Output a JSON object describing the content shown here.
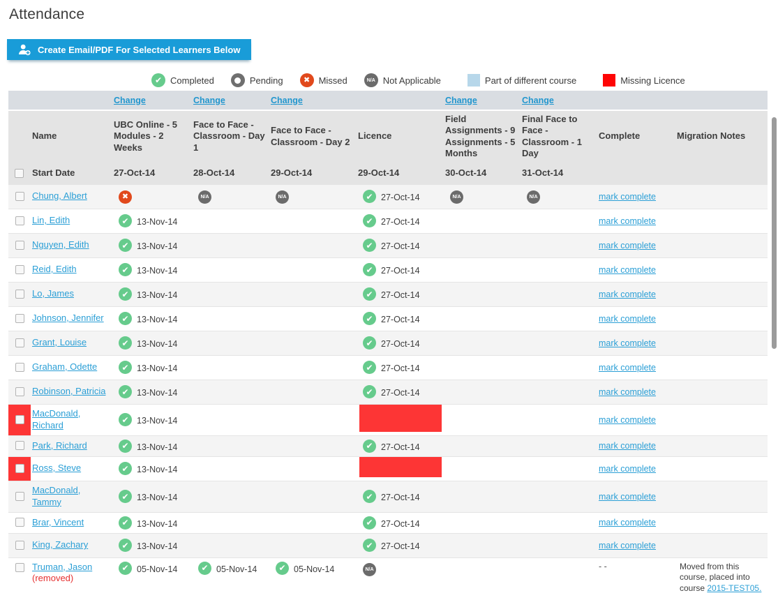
{
  "page": {
    "title": "Attendance"
  },
  "toolbar": {
    "create_button_label": "Create Email/PDF For Selected Learners Below",
    "create_button_icon": "add-user-icon"
  },
  "colors": {
    "accent_blue": "#199cd8",
    "link_blue": "#2b9fd6",
    "completed_green": "#66cb8c",
    "missed_orange_red": "#e1491c",
    "na_gray": "#6b6b6b",
    "missing_licence_red": "#fd3535",
    "legend_blue_square": "#b7d7ea",
    "legend_red_square": "#fe0505"
  },
  "legend": {
    "items": [
      {
        "icon": "completed-icon",
        "label": "Completed"
      },
      {
        "icon": "pending-icon",
        "label": "Pending"
      },
      {
        "icon": "missed-icon",
        "label": "Missed"
      },
      {
        "icon": "na-icon",
        "label": "Not Applicable"
      },
      {
        "icon": "blue-square-icon",
        "label": "Part of different course"
      },
      {
        "icon": "red-square-icon",
        "label": "Missing Licence"
      }
    ]
  },
  "table": {
    "change_label": "Change",
    "columns": [
      {
        "key": "name",
        "title": "Name",
        "subtitle": "Start Date"
      },
      {
        "key": "course1",
        "title": "UBC Online - 5 Modules - 2 Weeks",
        "date": "27-Oct-14",
        "change": true
      },
      {
        "key": "course2",
        "title": "Face to Face - Classroom - Day 1",
        "date": "28-Oct-14",
        "change": true
      },
      {
        "key": "course3",
        "title": "Face to Face - Classroom - Day 2",
        "date": "29-Oct-14",
        "change": true
      },
      {
        "key": "licence",
        "title": "Licence",
        "date": "29-Oct-14",
        "change": false
      },
      {
        "key": "course4",
        "title": "Field Assignments - 9 Assignments - 5 Months",
        "date": "30-Oct-14",
        "change": true
      },
      {
        "key": "course5",
        "title": "Final Face to Face - Classroom - 1 Day",
        "date": "31-Oct-14",
        "change": true
      },
      {
        "key": "complete",
        "title": "Complete"
      },
      {
        "key": "migration",
        "title": "Migration Notes"
      }
    ],
    "rows": [
      {
        "name": "Chung, Albert",
        "flagged": false,
        "cells": [
          {
            "status": "missed",
            "date": ""
          },
          {
            "status": "na",
            "date": ""
          },
          {
            "status": "na",
            "date": ""
          },
          {
            "status": "completed",
            "date": "27-Oct-14"
          },
          {
            "status": "na",
            "date": ""
          },
          {
            "status": "na",
            "date": ""
          }
        ],
        "complete": {
          "label": "mark complete",
          "link": true
        }
      },
      {
        "name": "Lin, Edith",
        "flagged": false,
        "cells": [
          {
            "status": "completed",
            "date": "13-Nov-14"
          },
          null,
          null,
          {
            "status": "completed",
            "date": "27-Oct-14"
          },
          null,
          null
        ],
        "complete": {
          "label": "mark complete",
          "link": true
        }
      },
      {
        "name": "Nguyen, Edith",
        "flagged": false,
        "cells": [
          {
            "status": "completed",
            "date": "13-Nov-14"
          },
          null,
          null,
          {
            "status": "completed",
            "date": "27-Oct-14"
          },
          null,
          null
        ],
        "complete": {
          "label": "mark complete",
          "link": true
        }
      },
      {
        "name": "Reid, Edith",
        "flagged": false,
        "cells": [
          {
            "status": "completed",
            "date": "13-Nov-14"
          },
          null,
          null,
          {
            "status": "completed",
            "date": "27-Oct-14"
          },
          null,
          null
        ],
        "complete": {
          "label": "mark complete",
          "link": true
        }
      },
      {
        "name": "Lo, James",
        "flagged": false,
        "cells": [
          {
            "status": "completed",
            "date": "13-Nov-14"
          },
          null,
          null,
          {
            "status": "completed",
            "date": "27-Oct-14"
          },
          null,
          null
        ],
        "complete": {
          "label": "mark complete",
          "link": true
        }
      },
      {
        "name": "Johnson, Jennifer",
        "flagged": false,
        "cells": [
          {
            "status": "completed",
            "date": "13-Nov-14"
          },
          null,
          null,
          {
            "status": "completed",
            "date": "27-Oct-14"
          },
          null,
          null
        ],
        "complete": {
          "label": "mark complete",
          "link": true
        }
      },
      {
        "name": "Grant, Louise",
        "flagged": false,
        "cells": [
          {
            "status": "completed",
            "date": "13-Nov-14"
          },
          null,
          null,
          {
            "status": "completed",
            "date": "27-Oct-14"
          },
          null,
          null
        ],
        "complete": {
          "label": "mark complete",
          "link": true
        }
      },
      {
        "name": "Graham, Odette",
        "flagged": false,
        "cells": [
          {
            "status": "completed",
            "date": "13-Nov-14"
          },
          null,
          null,
          {
            "status": "completed",
            "date": "27-Oct-14"
          },
          null,
          null
        ],
        "complete": {
          "label": "mark complete",
          "link": true
        }
      },
      {
        "name": "Robinson, Patricia",
        "flagged": false,
        "cells": [
          {
            "status": "completed",
            "date": "13-Nov-14"
          },
          null,
          null,
          {
            "status": "completed",
            "date": "27-Oct-14"
          },
          null,
          null
        ],
        "complete": {
          "label": "mark complete",
          "link": true
        }
      },
      {
        "name": "MacDonald, Richard",
        "flagged": true,
        "cells": [
          {
            "status": "completed",
            "date": "13-Nov-14"
          },
          null,
          null,
          {
            "status": "missing-licence"
          },
          null,
          null
        ],
        "complete": {
          "label": "mark complete",
          "link": true
        }
      },
      {
        "name": "Park, Richard",
        "flagged": false,
        "cells": [
          {
            "status": "completed",
            "date": "13-Nov-14"
          },
          null,
          null,
          {
            "status": "completed",
            "date": "27-Oct-14"
          },
          null,
          null
        ],
        "complete": {
          "label": "mark complete",
          "link": true
        }
      },
      {
        "name": "Ross, Steve",
        "flagged": true,
        "cells": [
          {
            "status": "completed",
            "date": "13-Nov-14"
          },
          null,
          null,
          {
            "status": "missing-licence"
          },
          null,
          null
        ],
        "complete": {
          "label": "mark complete",
          "link": true
        }
      },
      {
        "name": "MacDonald, Tammy",
        "flagged": false,
        "cells": [
          {
            "status": "completed",
            "date": "13-Nov-14"
          },
          null,
          null,
          {
            "status": "completed",
            "date": "27-Oct-14"
          },
          null,
          null
        ],
        "complete": {
          "label": "mark complete",
          "link": true
        }
      },
      {
        "name": "Brar, Vincent",
        "flagged": false,
        "cells": [
          {
            "status": "completed",
            "date": "13-Nov-14"
          },
          null,
          null,
          {
            "status": "completed",
            "date": "27-Oct-14"
          },
          null,
          null
        ],
        "complete": {
          "label": "mark complete",
          "link": true
        }
      },
      {
        "name": "King, Zachary",
        "flagged": false,
        "cells": [
          {
            "status": "completed",
            "date": "13-Nov-14"
          },
          null,
          null,
          {
            "status": "completed",
            "date": "27-Oct-14"
          },
          null,
          null
        ],
        "complete": {
          "label": "mark complete",
          "link": true
        }
      },
      {
        "name": "Truman, Jason",
        "removed_label": "(removed)",
        "flagged": false,
        "cells": [
          {
            "status": "completed",
            "date": "05-Nov-14"
          },
          {
            "status": "completed",
            "date": "05-Nov-14"
          },
          {
            "status": "completed",
            "date": "05-Nov-14"
          },
          {
            "status": "na",
            "date": ""
          },
          null,
          null
        ],
        "complete": {
          "label": "- -",
          "link": false
        },
        "migration": {
          "prefix": "Moved from this course, placed into course ",
          "link_text": "2015-TEST05."
        }
      }
    ]
  }
}
